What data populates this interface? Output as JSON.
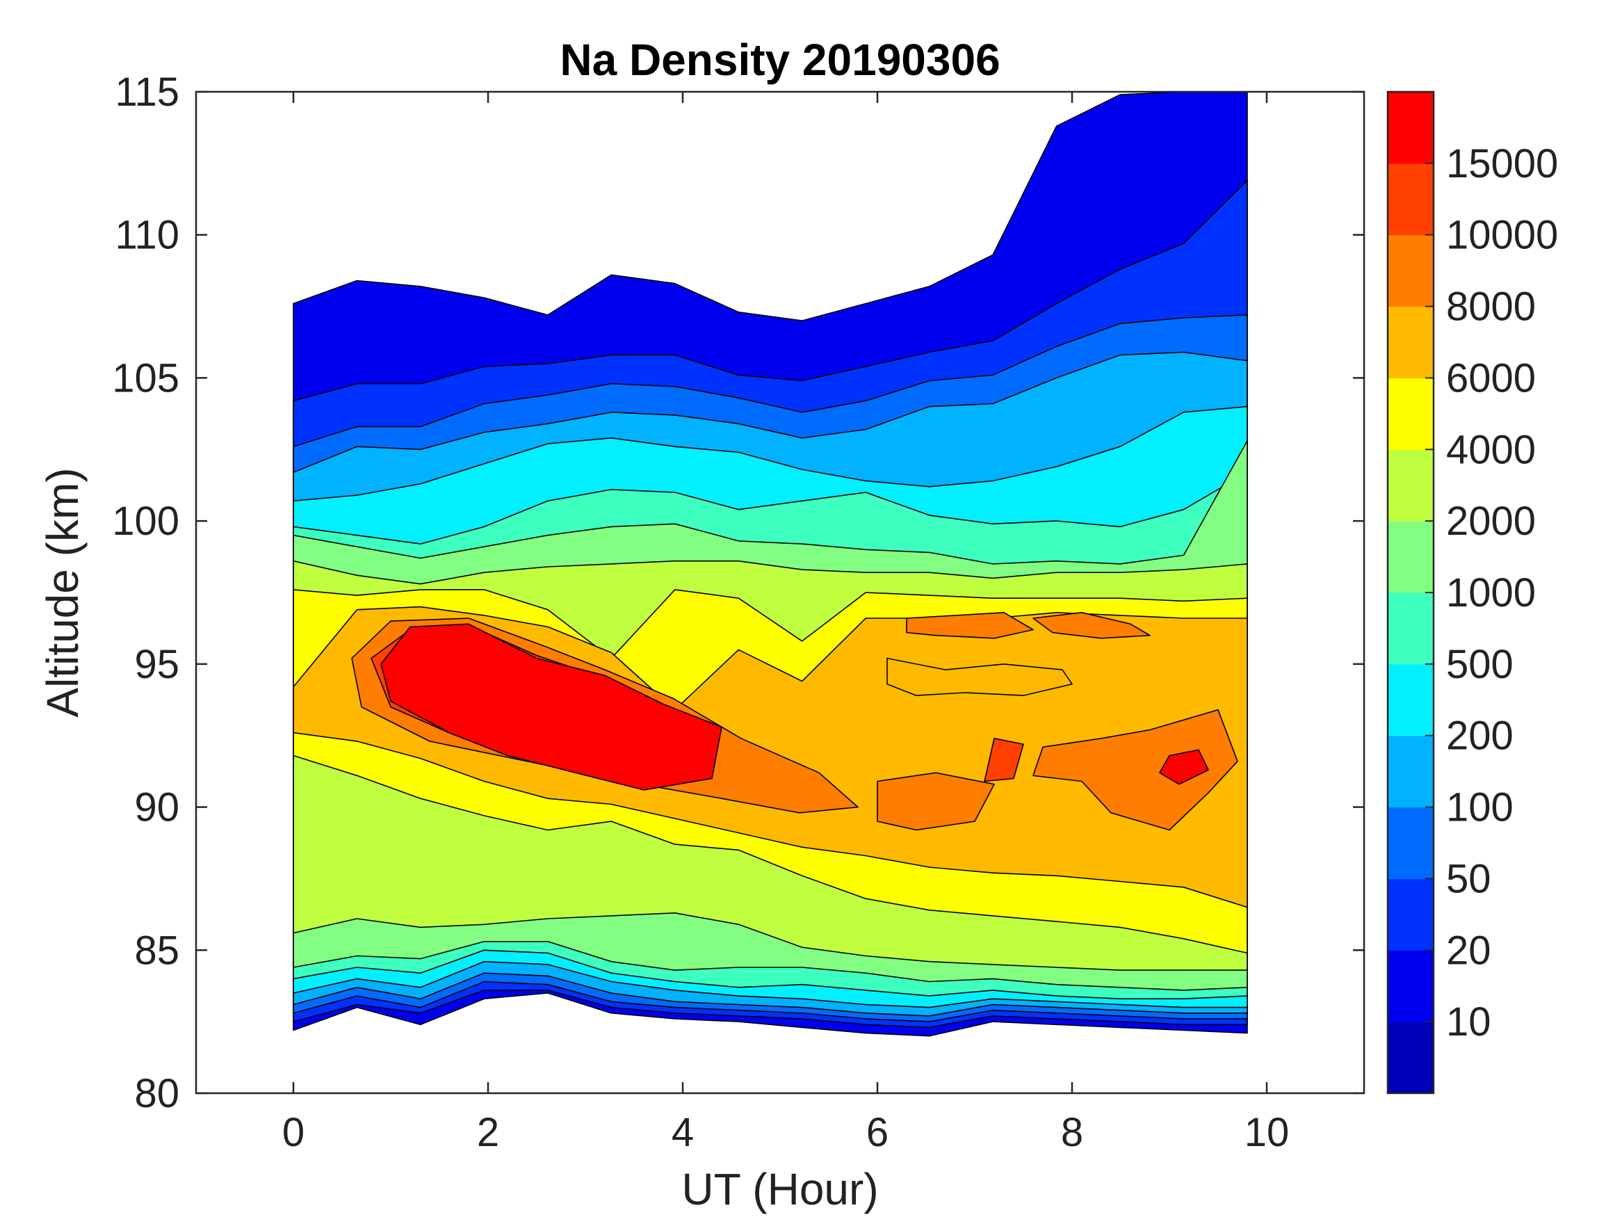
{
  "chart_data": {
    "type": "heatmap",
    "subtype": "filled-contour",
    "title": "Na Density 20190306",
    "xlabel": "UT (Hour)",
    "ylabel": "Altitude (km)",
    "xlim": [
      -1,
      11
    ],
    "ylim": [
      80,
      115
    ],
    "x_ticks": [
      "0",
      "2",
      "4",
      "6",
      "8",
      "10"
    ],
    "y_ticks": [
      "80",
      "85",
      "90",
      "95",
      "100",
      "105",
      "110",
      "115"
    ],
    "x_data_range": [
      0,
      9.8
    ],
    "colorbar": {
      "levels": [
        0,
        10,
        20,
        50,
        100,
        200,
        500,
        1000,
        2000,
        4000,
        6000,
        8000,
        10000,
        15000,
        20000
      ],
      "tick_labels": [
        "10",
        "20",
        "50",
        "100",
        "200",
        "500",
        "1000",
        "2000",
        "4000",
        "6000",
        "8000",
        "10000",
        "15000"
      ],
      "colors": [
        "#0000b8",
        "#0000f0",
        "#0032ff",
        "#006cff",
        "#00b2ff",
        "#00f0ff",
        "#3cffc0",
        "#82ff82",
        "#c0ff40",
        "#ffff00",
        "#ffba00",
        "#ff7d00",
        "#ff4000",
        "#ff0000"
      ]
    },
    "boundaries": [
      {
        "level": 10,
        "top": [
          107.6,
          108.4,
          108.2,
          107.8,
          107.2,
          108.6,
          108.3,
          107.3,
          107.0,
          107.6,
          108.2,
          109.3,
          113.8,
          114.9,
          115.0,
          115.0
        ],
        "bottom": [
          82.2,
          83.0,
          82.4,
          83.3,
          83.5,
          82.8,
          82.6,
          82.5,
          82.3,
          82.1,
          82.0,
          82.5,
          82.4,
          82.3,
          82.2,
          82.1
        ]
      },
      {
        "level": 20,
        "top": [
          104.2,
          104.8,
          104.8,
          105.4,
          105.5,
          105.8,
          105.8,
          105.1,
          104.9,
          105.4,
          105.9,
          106.3,
          107.6,
          108.8,
          109.7,
          111.9
        ],
        "bottom": [
          82.5,
          83.1,
          82.8,
          83.6,
          83.6,
          83.0,
          82.8,
          82.7,
          82.6,
          82.4,
          82.3,
          82.7,
          82.6,
          82.5,
          82.4,
          82.4
        ]
      },
      {
        "level": 50,
        "top": [
          102.6,
          103.3,
          103.3,
          104.1,
          104.4,
          104.8,
          104.7,
          104.3,
          103.8,
          104.2,
          104.9,
          105.1,
          106.1,
          106.9,
          107.1,
          107.2
        ],
        "bottom": [
          82.8,
          83.4,
          83.0,
          83.9,
          83.8,
          83.2,
          83.0,
          82.9,
          82.8,
          82.6,
          82.5,
          82.9,
          82.8,
          82.7,
          82.6,
          82.6
        ]
      },
      {
        "level": 100,
        "top": [
          101.7,
          102.6,
          102.5,
          103.1,
          103.4,
          103.8,
          103.7,
          103.4,
          102.9,
          103.2,
          104.0,
          104.1,
          105.0,
          105.8,
          105.9,
          105.6
        ],
        "bottom": [
          83.1,
          83.7,
          83.3,
          84.2,
          84.1,
          83.5,
          83.2,
          83.1,
          83.0,
          82.8,
          82.7,
          83.1,
          83.0,
          82.9,
          82.8,
          82.8
        ]
      },
      {
        "level": 200,
        "top": [
          100.7,
          100.9,
          101.3,
          102.0,
          102.7,
          102.9,
          102.6,
          102.4,
          101.8,
          101.4,
          101.2,
          101.4,
          101.9,
          102.6,
          103.8,
          104.0
        ],
        "bottom": [
          83.5,
          84.0,
          83.7,
          84.6,
          84.5,
          83.9,
          83.6,
          83.4,
          83.3,
          83.1,
          83.0,
          83.3,
          83.2,
          83.1,
          83.0,
          83.0
        ]
      },
      {
        "level": 500,
        "top": [
          99.8,
          99.5,
          99.2,
          99.8,
          100.7,
          101.1,
          101.0,
          100.4,
          100.7,
          101.0,
          100.2,
          99.9,
          100.0,
          99.8,
          100.4,
          101.7
        ],
        "bottom": [
          84.0,
          84.4,
          84.2,
          85.0,
          84.9,
          84.2,
          83.9,
          83.7,
          83.8,
          83.6,
          83.4,
          83.6,
          83.4,
          83.3,
          83.3,
          83.4
        ]
      },
      {
        "level": 1000,
        "top": [
          99.5,
          99.1,
          98.7,
          99.1,
          99.5,
          99.8,
          99.9,
          99.3,
          99.2,
          99.0,
          98.9,
          98.5,
          98.6,
          98.5,
          98.8,
          102.8
        ],
        "bottom": [
          84.4,
          84.8,
          84.7,
          85.3,
          85.3,
          84.6,
          84.3,
          84.4,
          84.4,
          84.2,
          83.9,
          84.0,
          83.8,
          83.7,
          83.6,
          83.7
        ]
      },
      {
        "level": 2000,
        "top": [
          98.6,
          98.1,
          97.8,
          98.2,
          98.4,
          98.5,
          98.6,
          98.6,
          98.3,
          98.2,
          98.2,
          98.0,
          98.2,
          98.2,
          98.3,
          98.5
        ],
        "bottom": [
          85.6,
          86.1,
          85.8,
          85.9,
          86.1,
          86.2,
          86.3,
          85.9,
          85.1,
          84.8,
          84.6,
          84.5,
          84.4,
          84.3,
          84.3,
          84.3
        ]
      },
      {
        "level": 4000,
        "top": [
          97.6,
          97.4,
          97.6,
          97.6,
          96.9,
          95.2,
          97.6,
          97.3,
          95.8,
          97.5,
          97.4,
          97.3,
          97.3,
          97.3,
          97.2,
          97.3
        ],
        "bottom": [
          91.8,
          91.1,
          90.3,
          89.7,
          89.2,
          89.5,
          88.7,
          88.5,
          87.6,
          86.8,
          86.4,
          86.2,
          86.0,
          85.8,
          85.4,
          84.9
        ]
      },
      {
        "level": 6000,
        "top": [
          94.2,
          96.9,
          97.0,
          96.7,
          96.3,
          95.4,
          93.4,
          95.5,
          94.4,
          96.6,
          96.6,
          96.6,
          96.8,
          96.7,
          96.6,
          96.6
        ],
        "bottom": [
          92.6,
          92.3,
          91.7,
          90.9,
          90.3,
          90.1,
          89.6,
          89.1,
          88.6,
          88.3,
          87.9,
          87.7,
          87.6,
          87.4,
          87.2,
          86.5
        ]
      }
    ],
    "patches": [
      {
        "level": 8000,
        "points": [
          [
            0.6,
            95.2
          ],
          [
            1.0,
            96.5
          ],
          [
            1.8,
            96.6
          ],
          [
            2.6,
            95.6
          ],
          [
            3.2,
            94.8
          ],
          [
            3.9,
            93.8
          ],
          [
            4.6,
            92.4
          ],
          [
            5.4,
            91.2
          ],
          [
            5.8,
            90.0
          ],
          [
            5.2,
            89.8
          ],
          [
            4.4,
            90.3
          ],
          [
            3.4,
            90.9
          ],
          [
            2.4,
            91.6
          ],
          [
            1.4,
            92.3
          ],
          [
            0.7,
            93.5
          ]
        ]
      },
      {
        "level": 10000,
        "points": [
          [
            0.8,
            95.2
          ],
          [
            1.2,
            96.2
          ],
          [
            1.9,
            96.2
          ],
          [
            2.5,
            95.3
          ],
          [
            3.1,
            94.6
          ],
          [
            3.6,
            93.6
          ],
          [
            4.1,
            92.6
          ],
          [
            4.3,
            91.2
          ],
          [
            3.6,
            90.8
          ],
          [
            3.0,
            91.4
          ],
          [
            2.4,
            91.8
          ],
          [
            1.6,
            92.6
          ],
          [
            1.0,
            93.5
          ]
        ]
      },
      {
        "level": 15000,
        "points": [
          [
            0.9,
            95.0
          ],
          [
            1.2,
            96.3
          ],
          [
            1.8,
            96.4
          ],
          [
            2.5,
            95.2
          ],
          [
            3.2,
            94.6
          ],
          [
            3.8,
            93.6
          ],
          [
            4.4,
            92.8
          ],
          [
            4.3,
            91.0
          ],
          [
            3.6,
            90.6
          ],
          [
            2.9,
            91.2
          ],
          [
            2.2,
            91.8
          ],
          [
            1.6,
            92.6
          ],
          [
            1.0,
            93.7
          ]
        ]
      },
      {
        "level": 8000,
        "points": [
          [
            6.3,
            96.6
          ],
          [
            6.8,
            96.7
          ],
          [
            7.3,
            96.8
          ],
          [
            7.6,
            96.2
          ],
          [
            7.2,
            95.9
          ],
          [
            6.6,
            96.0
          ],
          [
            6.3,
            96.1
          ]
        ]
      },
      {
        "level": 8000,
        "points": [
          [
            7.6,
            96.6
          ],
          [
            8.1,
            96.8
          ],
          [
            8.6,
            96.4
          ],
          [
            8.8,
            96.0
          ],
          [
            8.3,
            95.9
          ],
          [
            7.8,
            96.1
          ]
        ]
      },
      {
        "level": 6000,
        "points": [
          [
            6.1,
            95.2
          ],
          [
            6.7,
            94.8
          ],
          [
            7.3,
            95.0
          ],
          [
            7.9,
            94.8
          ],
          [
            8.0,
            94.3
          ],
          [
            7.5,
            93.9
          ],
          [
            6.9,
            94.0
          ],
          [
            6.4,
            93.9
          ],
          [
            6.1,
            94.3
          ]
        ]
      },
      {
        "level": 8000,
        "points": [
          [
            6.0,
            90.9
          ],
          [
            6.6,
            91.2
          ],
          [
            7.2,
            90.8
          ],
          [
            7.0,
            89.5
          ],
          [
            6.4,
            89.2
          ],
          [
            6.0,
            89.5
          ]
        ]
      },
      {
        "level": 8000,
        "points": [
          [
            8.3,
            92.4
          ],
          [
            8.8,
            92.7
          ],
          [
            9.5,
            93.4
          ],
          [
            9.7,
            91.6
          ],
          [
            9.4,
            90.5
          ],
          [
            9.0,
            89.2
          ],
          [
            8.4,
            89.8
          ],
          [
            8.1,
            90.9
          ],
          [
            7.6,
            91.1
          ],
          [
            7.7,
            92.1
          ]
        ]
      },
      {
        "level": 10000,
        "points": [
          [
            7.2,
            92.4
          ],
          [
            7.5,
            92.2
          ],
          [
            7.4,
            91.0
          ],
          [
            7.1,
            90.9
          ]
        ]
      },
      {
        "level": 15000,
        "points": [
          [
            9.0,
            91.8
          ],
          [
            9.3,
            92.0
          ],
          [
            9.4,
            91.3
          ],
          [
            9.1,
            90.8
          ],
          [
            8.9,
            91.2
          ]
        ]
      }
    ]
  }
}
